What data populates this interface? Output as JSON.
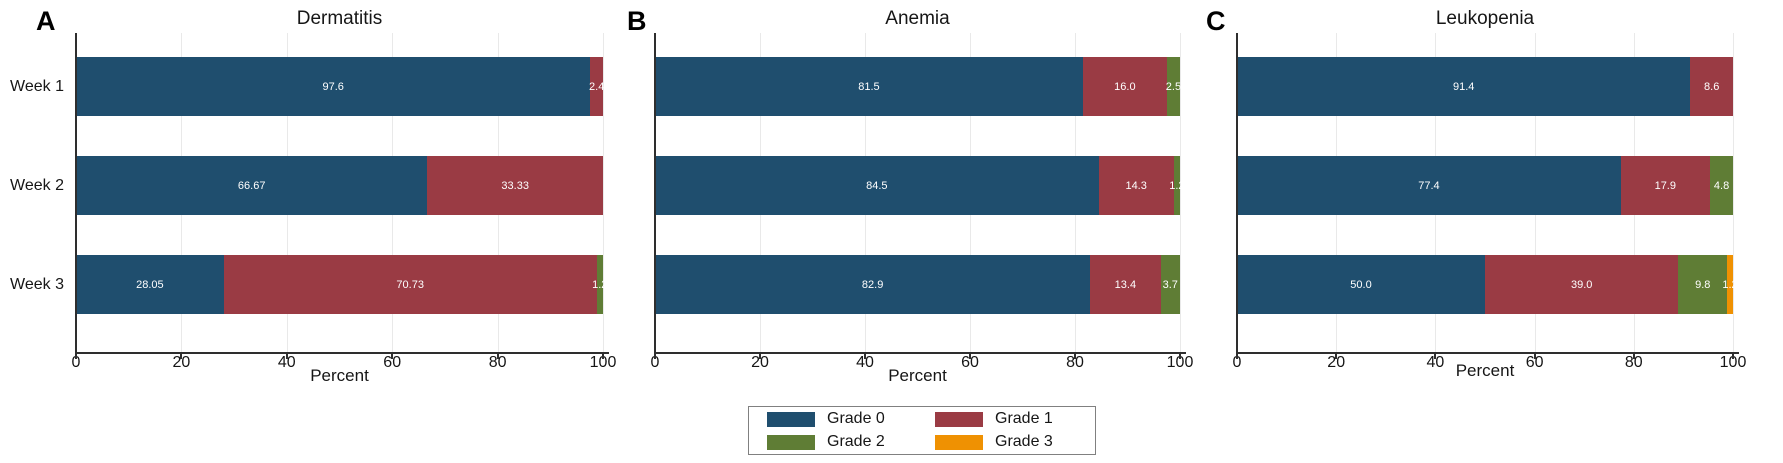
{
  "figure": {
    "background": "#ffffff"
  },
  "colors": {
    "grade0": "#1f4e6e",
    "grade1": "#9a3b44",
    "grade2": "#5f7d35",
    "grade3": "#ef9102",
    "axis": "#2e2e2e",
    "grid": "#e9e9e9",
    "bar_label": "#ffffff",
    "text": "#161616",
    "legend_border": "#808080"
  },
  "legend": {
    "position": "bottom-center",
    "entries": [
      {
        "label": "Grade 0",
        "color_key": "grade0"
      },
      {
        "label": "Grade 1",
        "color_key": "grade1"
      },
      {
        "label": "Grade 2",
        "color_key": "grade2"
      },
      {
        "label": "Grade 3",
        "color_key": "grade3"
      }
    ]
  },
  "chart_data": [
    {
      "type": "bar",
      "panel_label": "A",
      "title": "Dermatitis",
      "orientation": "horizontal",
      "stacked": true,
      "xlabel": "Percent",
      "xlim": [
        0,
        100
      ],
      "xticks": [
        0,
        20,
        40,
        60,
        80,
        100
      ],
      "grid": true,
      "categories": [
        "Week 1",
        "Week 2",
        "Week 3"
      ],
      "show_category_labels": true,
      "rows": [
        {
          "category": "Week 1",
          "segments": [
            {
              "name": "Grade 0",
              "value": 97.6,
              "label": "97.6"
            },
            {
              "name": "Grade 1",
              "value": 2.4,
              "label": "2.4"
            }
          ]
        },
        {
          "category": "Week 2",
          "segments": [
            {
              "name": "Grade 0",
              "value": 66.67,
              "label": "66.67"
            },
            {
              "name": "Grade 1",
              "value": 33.33,
              "label": "33.33"
            }
          ]
        },
        {
          "category": "Week 3",
          "segments": [
            {
              "name": "Grade 0",
              "value": 28.05,
              "label": "28.05"
            },
            {
              "name": "Grade 1",
              "value": 70.73,
              "label": "70.73"
            },
            {
              "name": "Grade 2",
              "value": 1.22,
              "label": "1.2"
            }
          ]
        }
      ]
    },
    {
      "type": "bar",
      "panel_label": "B",
      "title": "Anemia",
      "orientation": "horizontal",
      "stacked": true,
      "xlabel": "Percent",
      "xlim": [
        0,
        100
      ],
      "xticks": [
        0,
        20,
        40,
        60,
        80,
        100
      ],
      "grid": true,
      "categories": [
        "Week 1",
        "Week 2",
        "Week 3"
      ],
      "show_category_labels": false,
      "rows": [
        {
          "category": "Week 1",
          "segments": [
            {
              "name": "Grade 0",
              "value": 81.5,
              "label": "81.5"
            },
            {
              "name": "Grade 1",
              "value": 16.0,
              "label": "16.0"
            },
            {
              "name": "Grade 2",
              "value": 2.5,
              "label": "2.5"
            }
          ]
        },
        {
          "category": "Week 2",
          "segments": [
            {
              "name": "Grade 0",
              "value": 84.5,
              "label": "84.5"
            },
            {
              "name": "Grade 1",
              "value": 14.3,
              "label": "14.3"
            },
            {
              "name": "Grade 2",
              "value": 1.2,
              "label": "1.2"
            }
          ]
        },
        {
          "category": "Week 3",
          "segments": [
            {
              "name": "Grade 0",
              "value": 82.9,
              "label": "82.9"
            },
            {
              "name": "Grade 1",
              "value": 13.4,
              "label": "13.4"
            },
            {
              "name": "Grade 2",
              "value": 3.7,
              "label": "3.7"
            }
          ]
        }
      ]
    },
    {
      "type": "bar",
      "panel_label": "C",
      "title": "Leukopenia",
      "orientation": "horizontal",
      "stacked": true,
      "xlabel": "Percent",
      "xlim": [
        0,
        100
      ],
      "xticks": [
        0,
        20,
        40,
        60,
        80,
        100
      ],
      "grid": true,
      "categories": [
        "Week 1",
        "Week 2",
        "Week 3"
      ],
      "show_category_labels": false,
      "rows": [
        {
          "category": "Week 1",
          "segments": [
            {
              "name": "Grade 0",
              "value": 91.4,
              "label": "91.4"
            },
            {
              "name": "Grade 1",
              "value": 8.6,
              "label": "8.6"
            }
          ]
        },
        {
          "category": "Week 2",
          "segments": [
            {
              "name": "Grade 0",
              "value": 77.4,
              "label": "77.4"
            },
            {
              "name": "Grade 1",
              "value": 17.9,
              "label": "17.9"
            },
            {
              "name": "Grade 2",
              "value": 4.8,
              "label": "4.8"
            }
          ]
        },
        {
          "category": "Week 3",
          "segments": [
            {
              "name": "Grade 0",
              "value": 50.0,
              "label": "50.0"
            },
            {
              "name": "Grade 1",
              "value": 39.0,
              "label": "39.0"
            },
            {
              "name": "Grade 2",
              "value": 9.8,
              "label": "9.8"
            },
            {
              "name": "Grade 3",
              "value": 1.2,
              "label": "1.2"
            }
          ]
        }
      ]
    }
  ]
}
